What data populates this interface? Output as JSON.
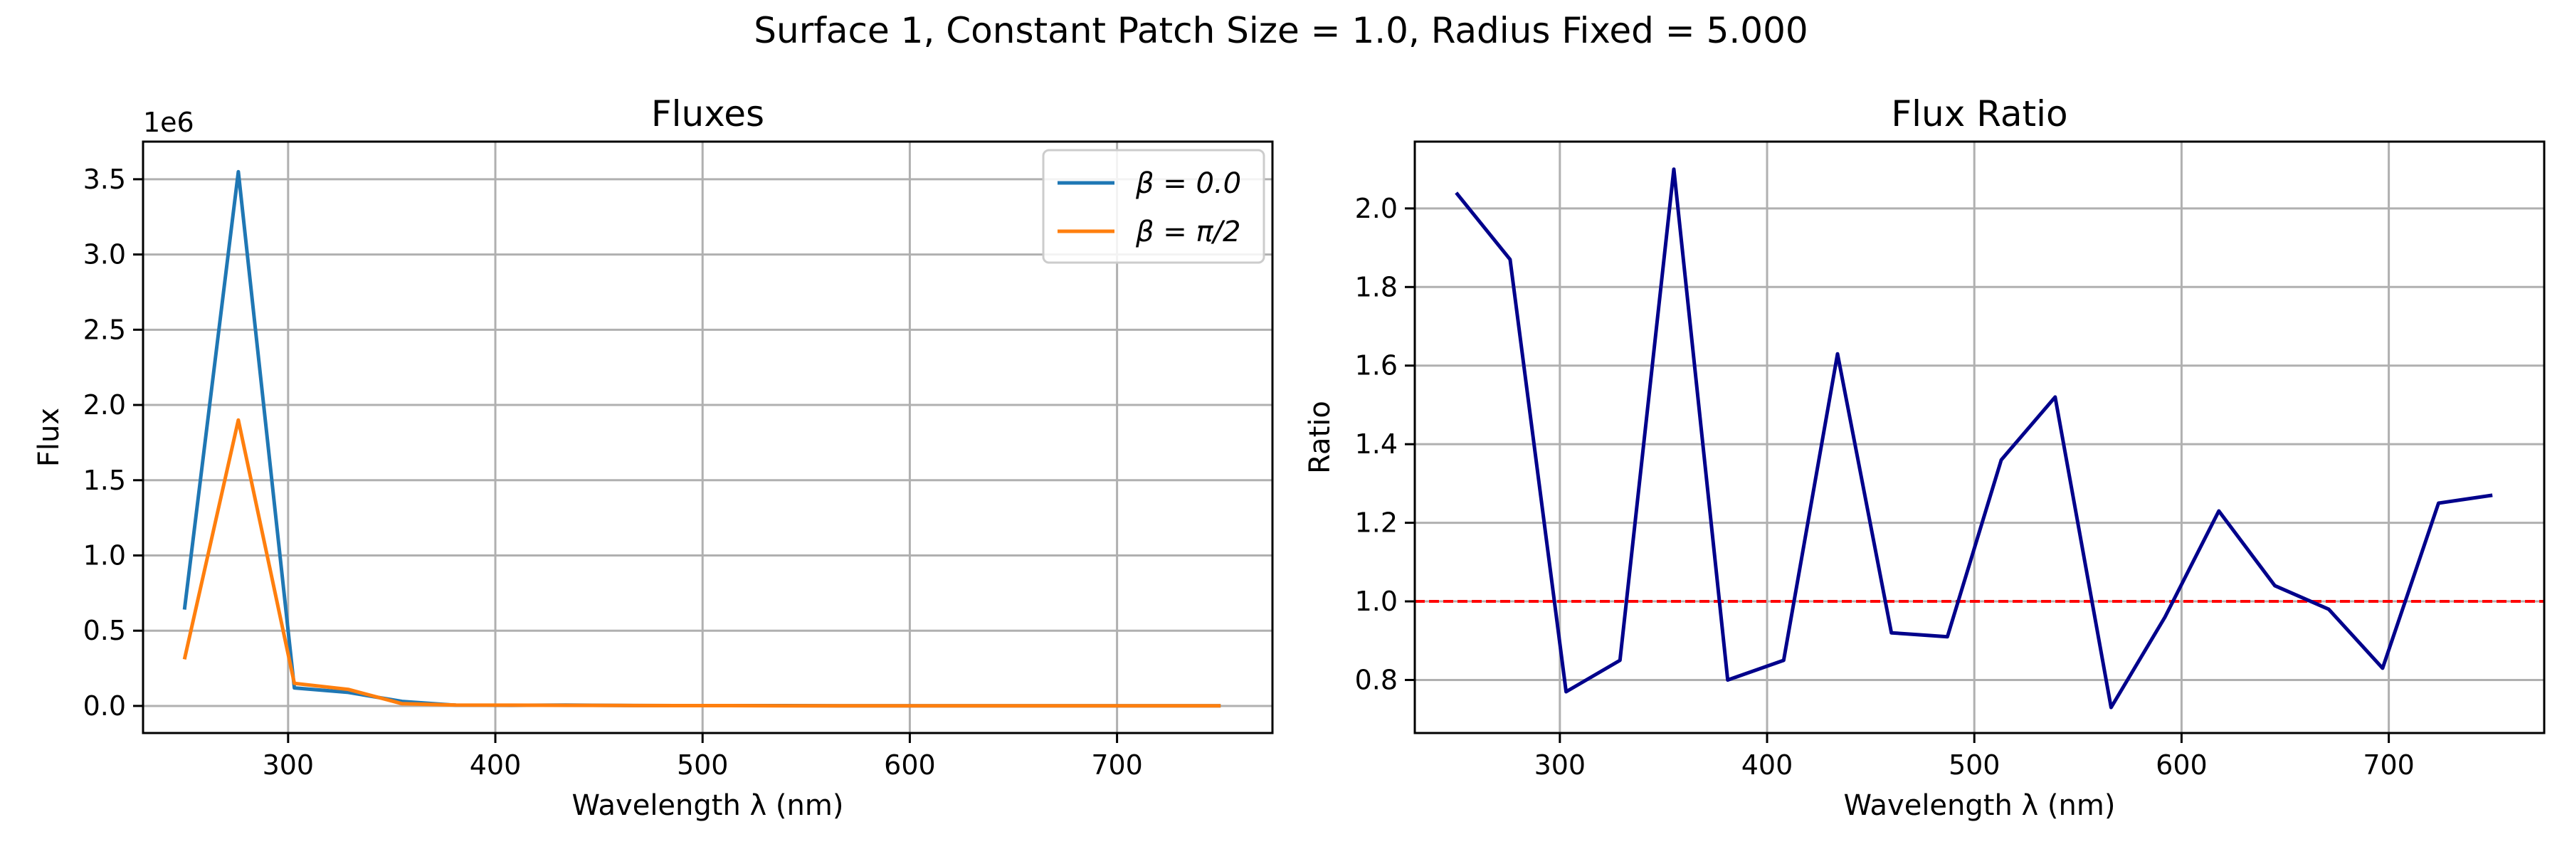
{
  "figure": {
    "suptitle": "Surface 1, Constant Patch Size = 1.0, Radius Fixed = 5.000"
  },
  "chart_data": [
    {
      "type": "line",
      "title": "Fluxes",
      "xlabel": "Wavelength λ (nm)",
      "ylabel": "Flux",
      "y_offset_label": "1e6",
      "xlim": [
        230,
        775
      ],
      "ylim": [
        -0.18,
        3.75
      ],
      "x_ticks": [
        300,
        400,
        500,
        600,
        700
      ],
      "x_tick_labels": [
        "300",
        "400",
        "500",
        "600",
        "700"
      ],
      "y_ticks": [
        0.0,
        0.5,
        1.0,
        1.5,
        2.0,
        2.5,
        3.0,
        3.5
      ],
      "y_tick_labels": [
        "0.0",
        "0.5",
        "1.0",
        "1.5",
        "2.0",
        "2.5",
        "3.0",
        "3.5"
      ],
      "grid": true,
      "legend_position": "upper right",
      "x": [
        250,
        276,
        303,
        329,
        355,
        381,
        408,
        434,
        460,
        487,
        513,
        539,
        566,
        592,
        618,
        645,
        671,
        697,
        724,
        750
      ],
      "series": [
        {
          "name": "β = 0.0",
          "color": "#1f77b4",
          "values": [
            0.64,
            3.55,
            0.12,
            0.09,
            0.03,
            0.005,
            0.004,
            0.006,
            0.003,
            0.002,
            0.002,
            0.002,
            0.001,
            0.001,
            0.001,
            0.001,
            0.001,
            0.001,
            0.001,
            0.001
          ]
        },
        {
          "name": "β = π/2",
          "color": "#ff7f0e",
          "values": [
            0.31,
            1.9,
            0.15,
            0.11,
            0.015,
            0.006,
            0.005,
            0.004,
            0.003,
            0.002,
            0.002,
            0.001,
            0.001,
            0.001,
            0.001,
            0.001,
            0.001,
            0.001,
            0.001,
            0.001
          ]
        }
      ]
    },
    {
      "type": "line",
      "title": "Flux Ratio",
      "xlabel": "Wavelength λ (nm)",
      "ylabel": "Ratio",
      "xlim": [
        230,
        775
      ],
      "ylim": [
        0.665,
        2.17
      ],
      "x_ticks": [
        300,
        400,
        500,
        600,
        700
      ],
      "x_tick_labels": [
        "300",
        "400",
        "500",
        "600",
        "700"
      ],
      "y_ticks": [
        0.8,
        1.0,
        1.2,
        1.4,
        1.6,
        1.8,
        2.0
      ],
      "y_tick_labels": [
        "0.8",
        "1.0",
        "1.2",
        "1.4",
        "1.6",
        "1.8",
        "2.0"
      ],
      "grid": true,
      "x": [
        250,
        276,
        303,
        329,
        355,
        381,
        408,
        434,
        460,
        487,
        513,
        539,
        566,
        592,
        618,
        645,
        671,
        697,
        724,
        750
      ],
      "series": [
        {
          "color": "#00008b",
          "values": [
            2.04,
            1.87,
            0.77,
            0.85,
            2.1,
            0.8,
            0.85,
            1.63,
            0.92,
            0.91,
            1.36,
            1.52,
            0.73,
            0.96,
            1.23,
            1.04,
            0.98,
            0.83,
            1.25,
            1.27
          ]
        }
      ],
      "reference_line": {
        "y": 1.0,
        "color": "#ff0000",
        "style": "dashed"
      }
    }
  ]
}
